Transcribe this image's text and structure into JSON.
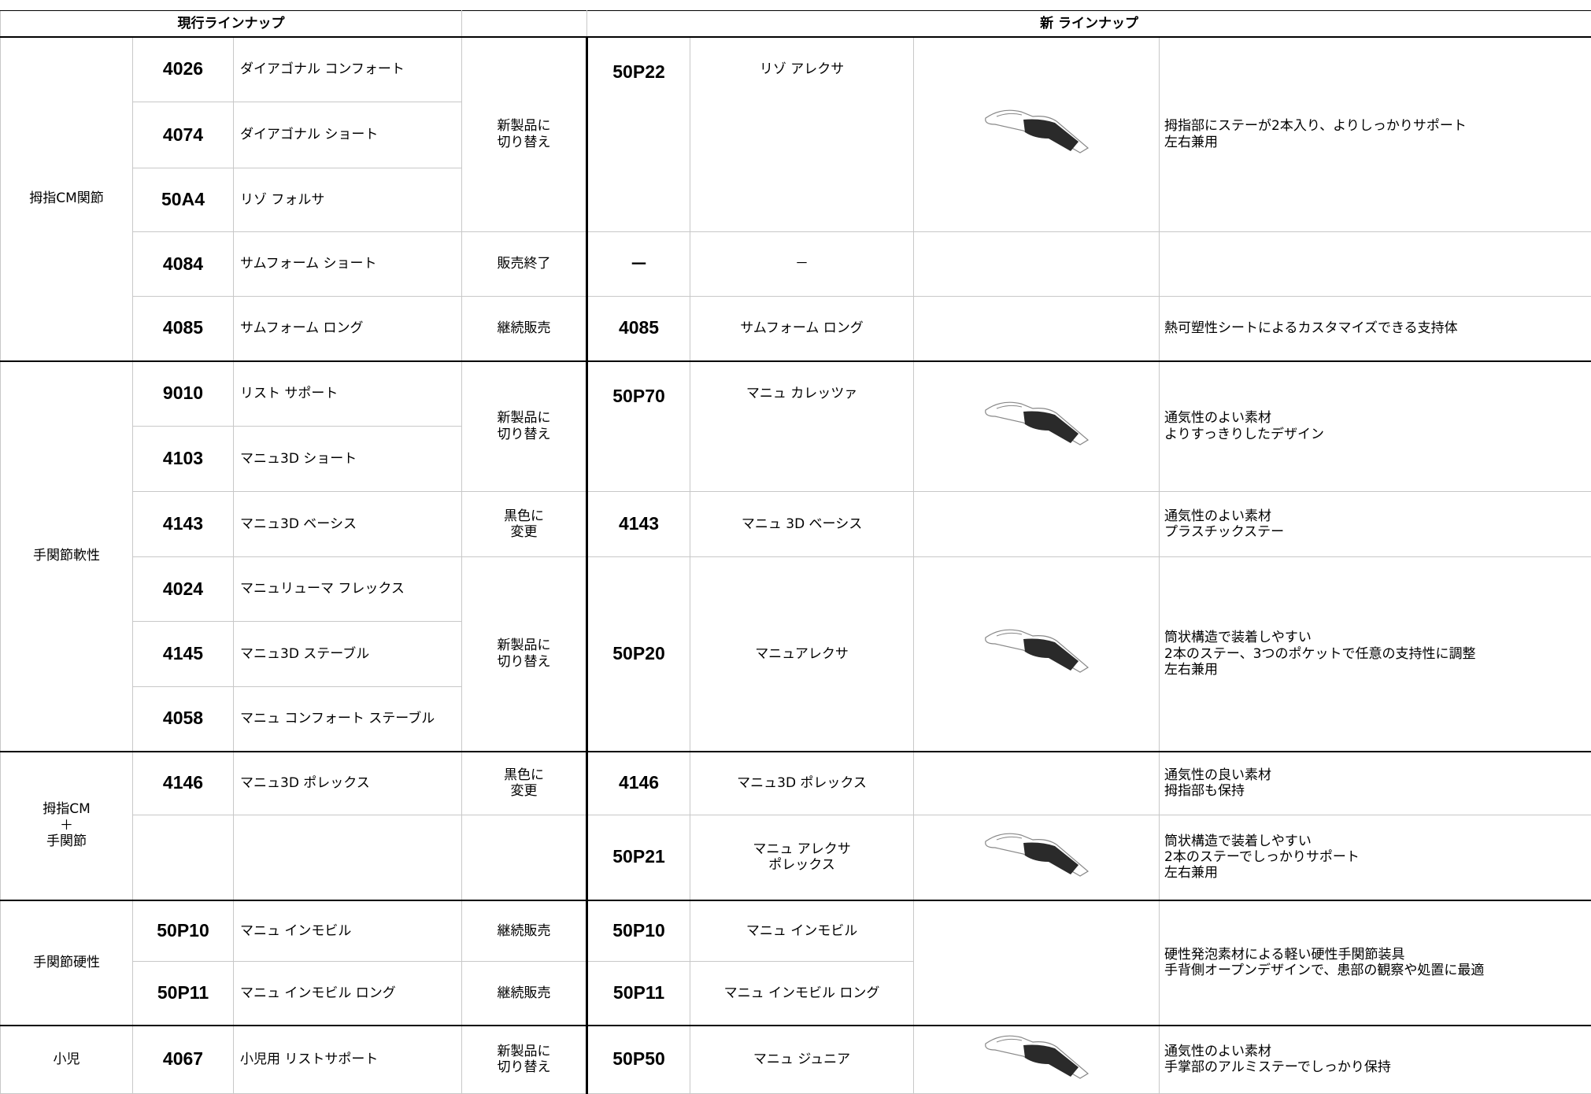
{
  "header": {
    "current": "現行ラインナップ",
    "new": "新 ラインナップ"
  },
  "groups": [
    {
      "category": "拇指CM関節",
      "current": [
        {
          "code": "4026",
          "name": "ダイアゴナル コンフォート"
        },
        {
          "code": "4074",
          "name": "ダイアゴナル  ショート"
        },
        {
          "code": "50A4",
          "name": "リゾ フォルサ"
        },
        {
          "code": "4084",
          "name": "サムフォーム ショート"
        },
        {
          "code": "4085",
          "name": "サムフォーム ロング"
        }
      ],
      "status": [
        "新製品に\n切り替え",
        "販売終了",
        "継続販売"
      ],
      "new": [
        {
          "code": "50P22",
          "name": "リゾ アレクサ",
          "description": "拇指部にステーが2本入り、よりしっかりサポート\n左右兼用"
        },
        {
          "code": "－",
          "name": "－"
        },
        {
          "code": "4085",
          "name": "サムフォーム ロング",
          "description": "熱可塑性シートによるカスタマイズできる支持体"
        }
      ]
    },
    {
      "category": "手関節軟性",
      "current": [
        {
          "code": "9010",
          "name": "リスト サポート"
        },
        {
          "code": "4103",
          "name": "マニュ3D ショート"
        },
        {
          "code": "4143",
          "name": "マニュ3D ベーシス"
        },
        {
          "code": "4024",
          "name": "マニュリューマ フレックス"
        },
        {
          "code": "4145",
          "name": "マニュ3D ステーブル"
        },
        {
          "code": "4058",
          "name": "マニュ コンフォート ステーブル"
        }
      ],
      "status": [
        "新製品に\n切り替え",
        "黒色に\n変更",
        "新製品に\n切り替え"
      ],
      "new": [
        {
          "code": "50P70",
          "name": "マニュ カレッツァ",
          "description": "通気性のよい素材\nよりすっきりしたデザイン"
        },
        {
          "code": "4143",
          "name": "マニュ  3D ベーシス",
          "description": "通気性のよい素材\nプラスチックステー"
        },
        {
          "code": "50P20",
          "name": "マニュアレクサ",
          "description": "筒状構造で装着しやすい\n2本のステー、3つのポケットで任意の支持性に調整\n左右兼用"
        }
      ]
    },
    {
      "category": "拇指CM\n＋\n手関節",
      "current": [
        {
          "code": "4146",
          "name": "マニュ3D ポレックス"
        }
      ],
      "status": [
        "黒色に\n変更"
      ],
      "new": [
        {
          "code": "4146",
          "name": "マニュ3D ポレックス",
          "description": "通気性の良い素材\n拇指部も保持"
        },
        {
          "code": "50P21",
          "name": "マニュ アレクサ\nポレックス",
          "description": "筒状構造で装着しやすい\n2本のステーでしっかりサポート\n左右兼用"
        }
      ]
    },
    {
      "category": "手関節硬性",
      "current": [
        {
          "code": "50P10",
          "name": "マニュ インモビル"
        },
        {
          "code": "50P11",
          "name": "マニュ インモビル ロング"
        }
      ],
      "status": [
        "継続販売",
        "継続販売"
      ],
      "new": [
        {
          "code": "50P10",
          "name": "マニュ インモビル"
        },
        {
          "code": "50P11",
          "name": "マニュ インモビル ロング"
        }
      ],
      "description": "硬性発泡素材による軽い硬性手関節装具\n手背側オープンデザインで、患部の観察や処置に最適"
    },
    {
      "category": "小児",
      "current": [
        {
          "code": "4067",
          "name": "小児用 リストサポート"
        }
      ],
      "status": [
        "新製品に\n切り替え"
      ],
      "new": [
        {
          "code": "50P50",
          "name": "マニュ ジュニア",
          "description": "通気性のよい素材\n手掌部のアルミステーでしっかり保持"
        }
      ]
    }
  ]
}
